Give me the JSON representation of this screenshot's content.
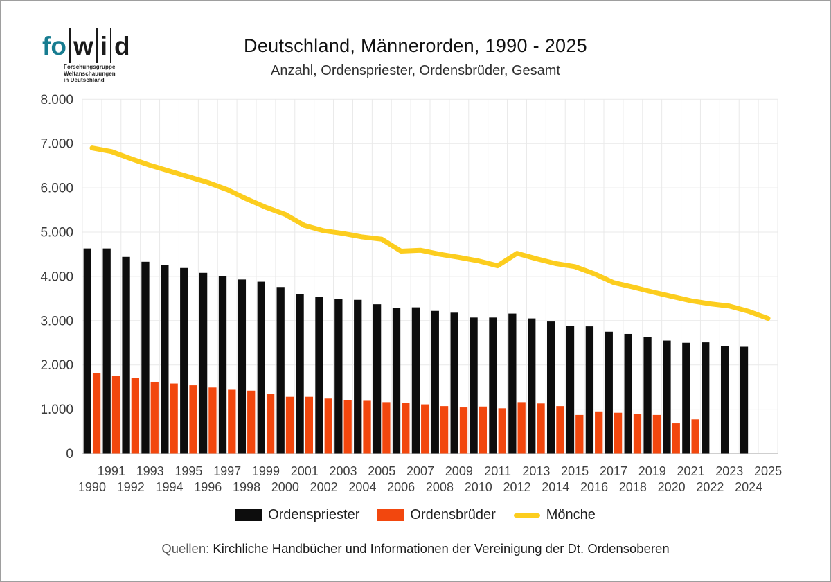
{
  "logo": {
    "fo": "fo",
    "w": "w",
    "i": "i",
    "d": "d",
    "tagline": [
      "Forschungsgruppe",
      "Weltanschauungen",
      "in Deutschland"
    ]
  },
  "header": {
    "title": "Deutschland, Männerorden, 1990 - 2025",
    "subtitle": "Anzahl, Ordenspriester, Ordensbrüder, Gesamt"
  },
  "chart_data": {
    "type": "bar",
    "title": "Deutschland, Männerorden, 1990 - 2025",
    "subtitle": "Anzahl, Ordenspriester, Ordensbrüder, Gesamt",
    "years": [
      1990,
      1991,
      1992,
      1993,
      1994,
      1995,
      1996,
      1997,
      1998,
      1999,
      2000,
      2001,
      2002,
      2003,
      2004,
      2005,
      2006,
      2007,
      2008,
      2009,
      2010,
      2011,
      2012,
      2013,
      2014,
      2015,
      2016,
      2017,
      2018,
      2019,
      2020,
      2021,
      2022,
      2023,
      2024,
      2025
    ],
    "series": [
      {
        "name": "Ordenspriester",
        "type": "bar",
        "color": "#0d0d0d",
        "values": [
          4630,
          4630,
          4440,
          4330,
          4250,
          4190,
          4080,
          4000,
          3930,
          3880,
          3760,
          3600,
          3540,
          3490,
          3470,
          3370,
          3280,
          3300,
          3220,
          3180,
          3070,
          3070,
          3160,
          3050,
          2980,
          2880,
          2870,
          2750,
          2700,
          2630,
          2550,
          2500,
          2510,
          2430,
          2410,
          null
        ]
      },
      {
        "name": "Ordensbrüder",
        "type": "bar",
        "color": "#f2470e",
        "values": [
          1820,
          1760,
          1700,
          1620,
          1580,
          1540,
          1490,
          1440,
          1420,
          1350,
          1280,
          1280,
          1240,
          1210,
          1190,
          1160,
          1140,
          1110,
          1070,
          1040,
          1060,
          1020,
          1160,
          1130,
          1070,
          870,
          950,
          920,
          890,
          870,
          680,
          770,
          null,
          null,
          null,
          null
        ]
      },
      {
        "name": "Mönche",
        "type": "line",
        "color": "#fccd1e",
        "values": [
          6900,
          6820,
          6660,
          6510,
          6380,
          6250,
          6120,
          5960,
          5750,
          5560,
          5400,
          5150,
          5030,
          4970,
          4890,
          4840,
          4570,
          4590,
          4500,
          4430,
          4350,
          4240,
          4520,
          4400,
          4290,
          4220,
          4060,
          3860,
          3760,
          3650,
          3550,
          3450,
          3380,
          3330,
          3210,
          3050
        ]
      }
    ],
    "ylim": [
      0,
      8000
    ],
    "ytick_step": 1000,
    "ytick_labels": [
      "0",
      "1.000",
      "2.000",
      "3.000",
      "4.000",
      "5.000",
      "6.000",
      "7.000",
      "8.000"
    ],
    "grid": true,
    "legend_position": "bottom",
    "grid_color": "#e9e9e9",
    "baseline_color": "#cfcfcf"
  },
  "footer": {
    "source_label": "Quellen:",
    "source_text": "Kirchliche Handbücher und Informationen der Vereinigung der Dt. Ordensoberen"
  }
}
